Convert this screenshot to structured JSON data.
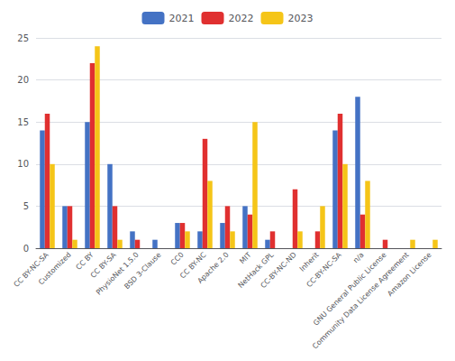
{
  "chart_data": {
    "type": "bar",
    "categories": [
      "CC BY-NC-SA",
      "Customized",
      "CC BY",
      "CC BY-SA",
      "PhysioNet 1.5.0",
      "BSD 3-Clause",
      "CC0",
      "CC BY-NC",
      "Apache 2.0",
      "MIT",
      "NetHack GPL",
      "CC-BY-NC-ND",
      "Inherit",
      "CC-BY-NC-SA",
      "n/a",
      "GNU General Public License",
      "Community Data License Agreement",
      "Amazon License"
    ],
    "series": [
      {
        "name": "2021",
        "color": "#4472c4",
        "values": [
          14,
          5,
          15,
          10,
          2,
          1,
          3,
          2,
          3,
          5,
          1,
          0,
          0,
          14,
          18,
          0,
          0,
          0
        ]
      },
      {
        "name": "2022",
        "color": "#e03030",
        "values": [
          16,
          5,
          22,
          5,
          1,
          0,
          3,
          13,
          5,
          4,
          2,
          7,
          2,
          16,
          4,
          1,
          0,
          0
        ]
      },
      {
        "name": "2023",
        "color": "#f5c518",
        "values": [
          10,
          1,
          24,
          1,
          0,
          0,
          2,
          8,
          2,
          15,
          0,
          2,
          5,
          10,
          8,
          0,
          1,
          1
        ]
      }
    ],
    "ylim": [
      0,
      25
    ],
    "yticks": [
      0,
      5,
      10,
      15,
      20,
      25
    ],
    "grid": true,
    "legend": "top"
  }
}
